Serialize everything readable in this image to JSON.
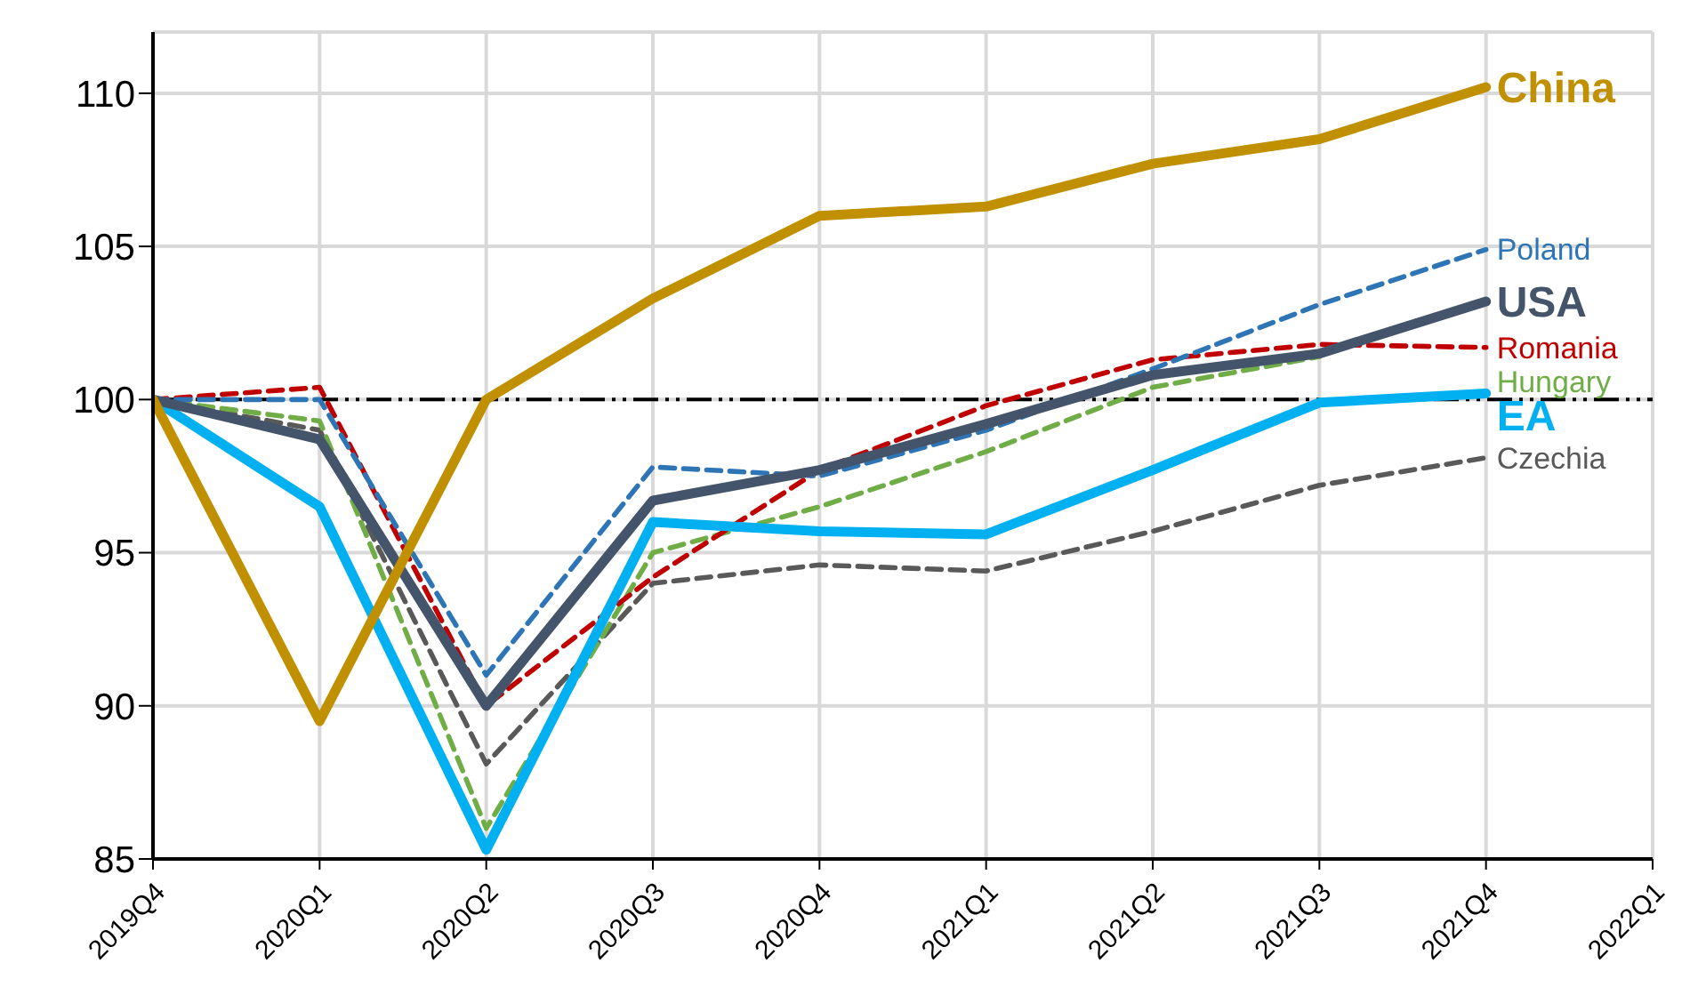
{
  "chart_data": {
    "type": "line",
    "categories": [
      "2019Q4",
      "2020Q1",
      "2020Q2",
      "2020Q3",
      "2020Q4",
      "2021Q1",
      "2021Q2",
      "2021Q3",
      "2021Q4",
      "2022Q1"
    ],
    "series": [
      {
        "name": "Czechia",
        "color": "#595959",
        "line_style": "dashed",
        "values": [
          100,
          99,
          88.1,
          94,
          94.6,
          94.4,
          95.7,
          97.2,
          98.1,
          null
        ]
      },
      {
        "name": "Hungary",
        "color": "#70ad47",
        "line_style": "dashed",
        "values": [
          100,
          99.3,
          86,
          95,
          96.5,
          98.3,
          100.4,
          101.4,
          null,
          null
        ]
      },
      {
        "name": "Romania",
        "color": "#c00000",
        "line_style": "dashed",
        "values": [
          100,
          100.4,
          90,
          94.2,
          97.7,
          99.8,
          101.3,
          101.8,
          101.7,
          null
        ]
      },
      {
        "name": "Poland",
        "color": "#2e75b6",
        "line_style": "dashed",
        "values": [
          100,
          100,
          91,
          97.8,
          97.5,
          99,
          101,
          103.1,
          104.9,
          null
        ]
      },
      {
        "name": "EA",
        "color": "#00b0f0",
        "line_style": "solid",
        "values": [
          100,
          96.5,
          85.3,
          96,
          95.7,
          95.6,
          97.7,
          99.9,
          100.2,
          null
        ]
      },
      {
        "name": "USA",
        "color": "#44546a",
        "line_style": "solid",
        "values": [
          100,
          98.7,
          90,
          96.7,
          97.7,
          99.2,
          100.8,
          101.5,
          103.2,
          null
        ]
      },
      {
        "name": "China",
        "color": "#c09000",
        "line_style": "solid",
        "values": [
          100,
          89.5,
          100,
          103.3,
          106,
          106.3,
          107.7,
          108.5,
          110.2,
          null
        ]
      }
    ],
    "ylim": [
      85,
      112
    ],
    "yticks": [
      85,
      90,
      95,
      100,
      105,
      110
    ],
    "grid": true,
    "marker": "none",
    "ref_lines": [
      {
        "axis": "y",
        "value": 100,
        "color": "#000000",
        "line_style": "dashdot"
      }
    ]
  }
}
